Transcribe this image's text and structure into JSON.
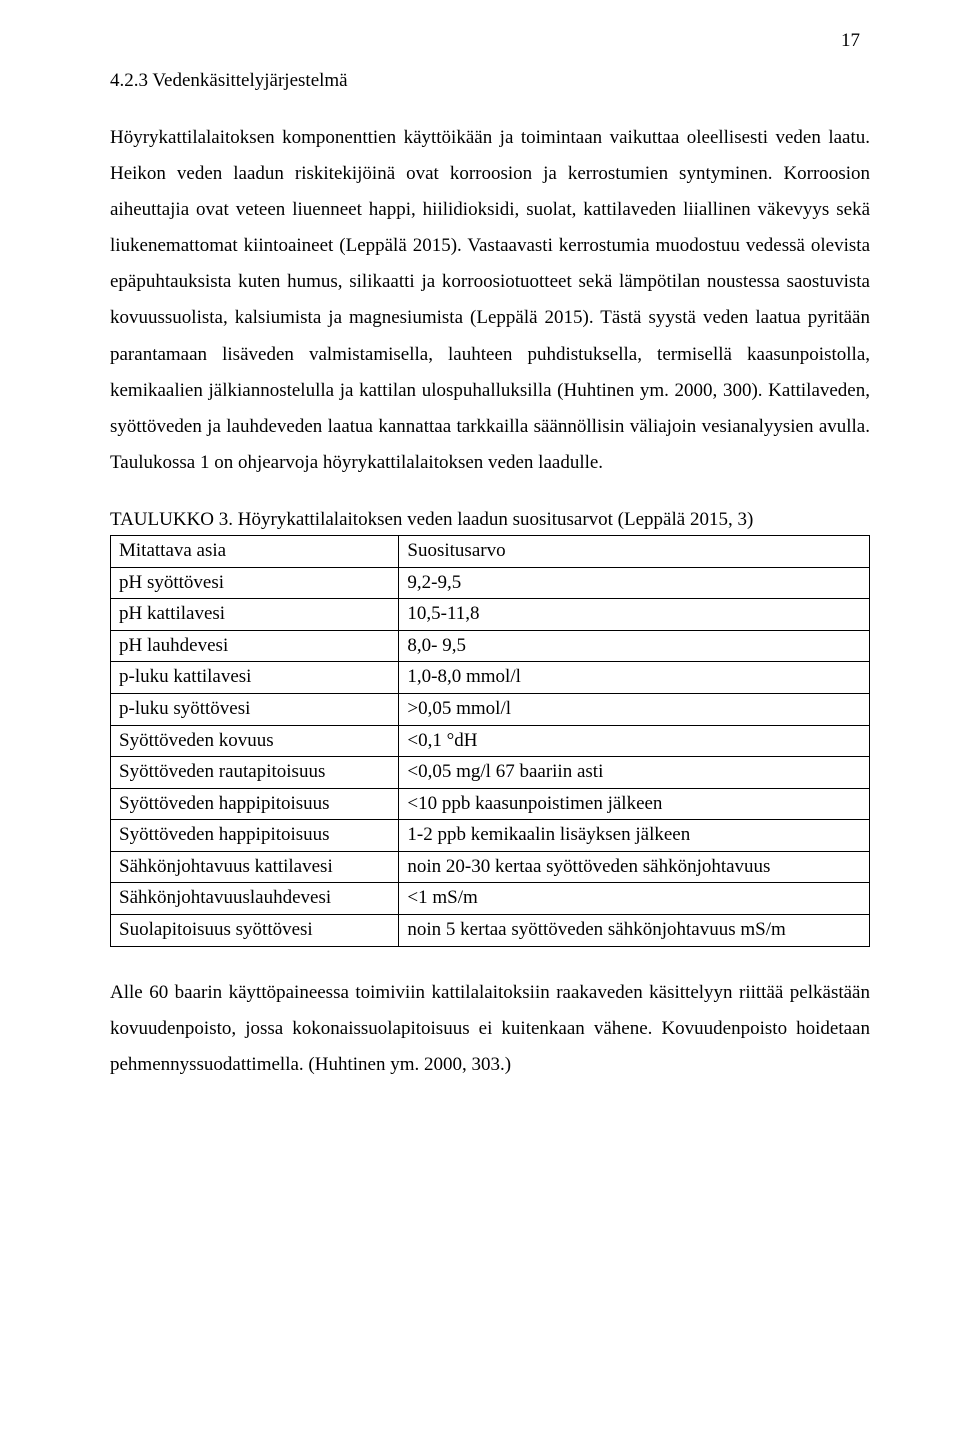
{
  "pageNumber": "17",
  "heading": "4.2.3   Vedenkäsittelyjärjestelmä",
  "para1": "Höyrykattilalaitoksen komponenttien käyttöikään ja toimintaan vaikuttaa oleellisesti veden laatu. Heikon veden laadun riskitekijöinä ovat korroosion ja kerrostumien syntyminen. Korroosion aiheuttajia ovat veteen liuenneet happi, hiilidioksidi, suolat, kattilaveden liiallinen väkevyys sekä liukenemattomat kiintoaineet (Leppälä 2015). Vastaavasti kerrostumia muodostuu vedessä olevista epäpuhtauksista kuten humus, silikaatti ja korroosiotuotteet sekä lämpötilan noustessa saostuvista kovuussuolista, kalsiumista ja magnesiumista (Leppälä 2015). Tästä syystä veden laatua pyritään parantamaan lisäveden valmistamisella, lauhteen puhdistuksella, termisellä kaasunpoistolla, kemikaalien jälkiannostelulla ja kattilan ulospuhalluksilla (Huhtinen ym. 2000, 300). Kattilaveden, syöttöveden ja lauhdeveden laatua kannattaa tarkkailla säännöllisin väliajoin vesianalyysien avulla. Taulukossa 1 on ohjearvoja höyrykattilalaitoksen veden laadulle.",
  "tableCaption": "TAULUKKO 3. Höyrykattilalaitoksen veden laadun suositusarvot (Leppälä 2015, 3)",
  "table": {
    "header": [
      "Mitattava asia",
      "Suositusarvo"
    ],
    "rows": [
      [
        "pH syöttövesi",
        "9,2-9,5"
      ],
      [
        "pH kattilavesi",
        "10,5-11,8"
      ],
      [
        "pH lauhdevesi",
        "8,0- 9,5"
      ],
      [
        "p-luku kattilavesi",
        "1,0-8,0 mmol/l"
      ],
      [
        "p-luku syöttövesi",
        ">0,05 mmol/l"
      ],
      [
        "Syöttöveden kovuus",
        "<0,1 °dH"
      ],
      [
        "Syöttöveden rautapitoisuus",
        "<0,05 mg/l 67 baariin asti"
      ],
      [
        "Syöttöveden happipitoisuus",
        "<10 ppb kaasunpoistimen jälkeen"
      ],
      [
        "Syöttöveden happipitoisuus",
        "1-2 ppb kemikaalin lisäyksen jälkeen"
      ],
      [
        "Sähkönjohtavuus kattilavesi",
        "noin 20-30 kertaa syöttöveden sähkönjohtavuus"
      ],
      [
        "Sähkönjohtavuuslauhdevesi",
        "<1 mS/m"
      ],
      [
        "Suolapitoisuus syöttövesi",
        "noin 5 kertaa syöttöveden sähkönjohtavuus mS/m"
      ]
    ]
  },
  "para2": "Alle 60 baarin käyttöpaineessa toimiviin kattilalaitoksiin raakaveden käsittelyyn riittää pelkästään kovuudenpoisto, jossa kokonaissuolapitoisuus ei kuitenkaan vähene. Kovuudenpoisto hoidetaan pehmennyssuodattimella. (Huhtinen ym. 2000, 303.)"
}
